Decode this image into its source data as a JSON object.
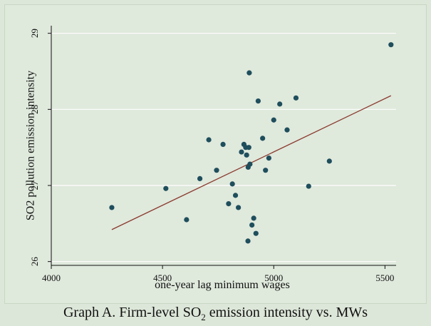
{
  "caption": {
    "prefix": "Graph A. Firm-level SO",
    "sub": "2",
    "suffix": " emission intensity vs. MWs"
  },
  "chart_data": {
    "type": "scatter",
    "xlabel": "one-year lag minimum wages",
    "ylabel": "SO2 pollution emission intensity",
    "xlim": [
      4000,
      5550
    ],
    "ylim": [
      25.95,
      29.1
    ],
    "xticks": [
      4000,
      4500,
      5000,
      5500
    ],
    "yticks": [
      26,
      27,
      28,
      29
    ],
    "grid": true,
    "colors": {
      "points": "#1f4e5c",
      "fit_line": "#8b3a2e",
      "grid": "#ffffff",
      "axis": "#111111"
    },
    "points": [
      {
        "x": 4272,
        "y": 26.71
      },
      {
        "x": 4515,
        "y": 26.96
      },
      {
        "x": 4608,
        "y": 26.55
      },
      {
        "x": 4668,
        "y": 27.09
      },
      {
        "x": 4708,
        "y": 27.6
      },
      {
        "x": 4743,
        "y": 27.2
      },
      {
        "x": 4772,
        "y": 27.54
      },
      {
        "x": 4797,
        "y": 26.76
      },
      {
        "x": 4814,
        "y": 27.02
      },
      {
        "x": 4828,
        "y": 26.87
      },
      {
        "x": 4841,
        "y": 26.71
      },
      {
        "x": 4855,
        "y": 27.44
      },
      {
        "x": 4866,
        "y": 27.54
      },
      {
        "x": 4874,
        "y": 27.5
      },
      {
        "x": 4878,
        "y": 27.4
      },
      {
        "x": 4884,
        "y": 26.27
      },
      {
        "x": 4885,
        "y": 27.24
      },
      {
        "x": 4888,
        "y": 27.5
      },
      {
        "x": 4890,
        "y": 28.48
      },
      {
        "x": 4893,
        "y": 27.28
      },
      {
        "x": 4902,
        "y": 26.48
      },
      {
        "x": 4910,
        "y": 26.57
      },
      {
        "x": 4920,
        "y": 26.37
      },
      {
        "x": 4930,
        "y": 28.11
      },
      {
        "x": 4950,
        "y": 27.62
      },
      {
        "x": 4963,
        "y": 27.2
      },
      {
        "x": 4978,
        "y": 27.36
      },
      {
        "x": 5000,
        "y": 27.86
      },
      {
        "x": 5027,
        "y": 28.07
      },
      {
        "x": 5060,
        "y": 27.73
      },
      {
        "x": 5100,
        "y": 28.15
      },
      {
        "x": 5157,
        "y": 26.99
      },
      {
        "x": 5250,
        "y": 27.32
      },
      {
        "x": 5527,
        "y": 28.85
      }
    ],
    "fit_line": {
      "x": [
        4272,
        5527
      ],
      "y": [
        26.42,
        28.18
      ]
    }
  }
}
